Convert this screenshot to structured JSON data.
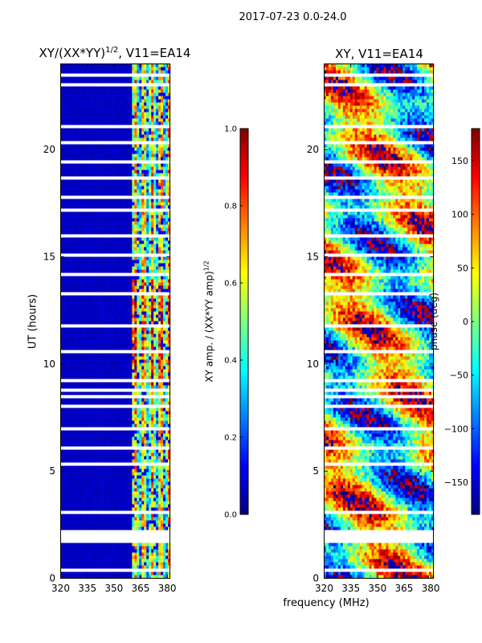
{
  "figure": {
    "suptitle": "2017-07-23 0.0-24.0",
    "xlabel": "frequency (MHz)"
  },
  "colors": {
    "jet": [
      "#00007f",
      "#0000ff",
      "#007fff",
      "#00ffff",
      "#7fff7f",
      "#ffff00",
      "#ff7f00",
      "#ff0000",
      "#7f0000"
    ],
    "gap": "#ffffff",
    "axis": "#000000"
  },
  "chart_data": [
    {
      "type": "heatmap",
      "title": "XY/(XX*YY)",
      "title_sup": "1/2",
      "title_suffix": ", V11=EA14",
      "xlabel": "frequency (MHz)",
      "ylabel": "UT (hours)",
      "xlim": [
        320,
        382
      ],
      "ylim": [
        0,
        24
      ],
      "xticks": [
        320,
        335,
        350,
        365,
        380
      ],
      "yticks": [
        0,
        5,
        10,
        15,
        20
      ],
      "colorbar": {
        "label": "XY amp. / (XX*YY amp)",
        "label_sup": "1/2",
        "range": [
          0.0,
          1.0
        ],
        "ticks": [
          "0.0",
          "0.2",
          "0.4",
          "0.6",
          "0.8",
          "1.0"
        ]
      },
      "description_values": {
        "background_level": 0.05,
        "active_band_mhz": [
          361,
          382
        ],
        "active_level_range": [
          0.3,
          1.0
        ]
      }
    },
    {
      "type": "heatmap",
      "title": "XY, V11=EA14",
      "xlabel": "frequency (MHz)",
      "ylabel": "",
      "xlim": [
        320,
        382
      ],
      "ylim": [
        0,
        24
      ],
      "xticks": [
        320,
        335,
        350,
        365,
        380
      ],
      "yticks": [
        0,
        5,
        10,
        15,
        20
      ],
      "colorbar": {
        "label": "phase (deg)",
        "range": [
          -180,
          180
        ],
        "ticks": [
          "150",
          "100",
          "50",
          "0",
          "−50",
          "−100",
          "−150"
        ],
        "tick_values": [
          150,
          100,
          50,
          0,
          -50,
          -100,
          -150
        ]
      }
    }
  ],
  "gaps_hours": [
    0.4,
    0.9,
    1.8,
    2.1,
    3.0,
    3.1,
    5.3,
    6.1,
    7.0,
    7.2,
    8.0,
    8.5,
    8.8,
    9.2,
    10.6,
    11.8,
    13.3,
    14.2,
    15.0,
    16.0,
    17.1,
    17.8,
    18.6,
    19.4,
    20.3,
    21.0,
    22.2,
    23.0,
    23.5
  ]
}
